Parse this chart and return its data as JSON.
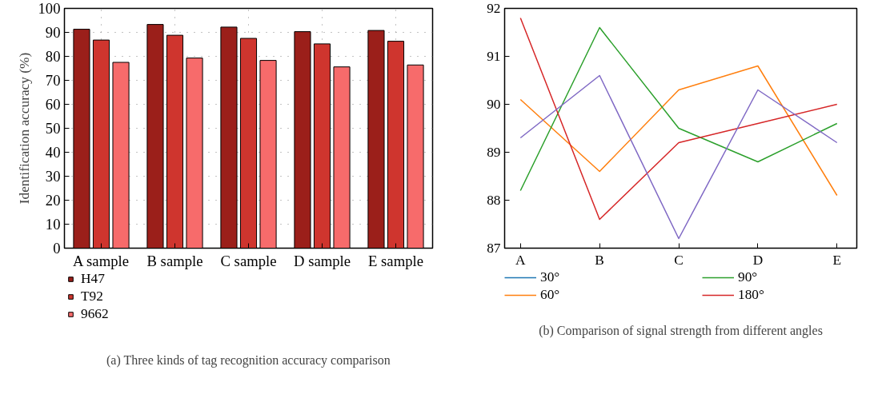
{
  "chart_data": [
    {
      "type": "bar",
      "title": "(a) Three kinds of tag recognition accuracy comparison",
      "ylabel": "Identification accuracy (%)",
      "categories": [
        "A sample",
        "B sample",
        "C sample",
        "D sample",
        "E sample"
      ],
      "series": [
        {
          "name": "H47",
          "color": "#9b1f1a",
          "values": [
            91.3,
            93.3,
            92.2,
            90.3,
            90.8
          ]
        },
        {
          "name": "T92",
          "color": "#cf352e",
          "values": [
            86.8,
            88.8,
            87.5,
            85.2,
            86.3
          ]
        },
        {
          "name": "9662",
          "color": "#f76b6b",
          "values": [
            77.5,
            79.3,
            78.3,
            75.6,
            76.4
          ]
        }
      ],
      "ylim": [
        0,
        100
      ],
      "yticks": [
        0,
        10,
        20,
        30,
        40,
        50,
        60,
        70,
        80,
        90,
        100
      ],
      "grid": true,
      "legend": "bottom left"
    },
    {
      "type": "line",
      "title": "(b) Comparison of signal strength from different angles",
      "categories": [
        "A",
        "B",
        "C",
        "D",
        "E"
      ],
      "series": [
        {
          "name": "30°",
          "color": "#1f77b4",
          "values": [
            null,
            null,
            null,
            null,
            null
          ]
        },
        {
          "name": "60°",
          "color": "#ff7f0e",
          "values": [
            90.1,
            88.6,
            90.3,
            90.8,
            88.1
          ]
        },
        {
          "name": "90°",
          "color": "#2ca02c",
          "values": [
            88.2,
            91.6,
            89.5,
            88.8,
            89.6
          ]
        },
        {
          "name": "180°",
          "color": "#d62728",
          "values": [
            91.8,
            87.6,
            89.2,
            89.6,
            90.0
          ]
        },
        {
          "color": "#7f68c4",
          "values": [
            89.3,
            90.6,
            87.2,
            90.3,
            89.2
          ]
        }
      ],
      "ylim": [
        87,
        92
      ],
      "yticks": [
        87,
        88,
        89,
        90,
        91,
        92
      ],
      "grid": false,
      "legend": "bottom left"
    }
  ]
}
